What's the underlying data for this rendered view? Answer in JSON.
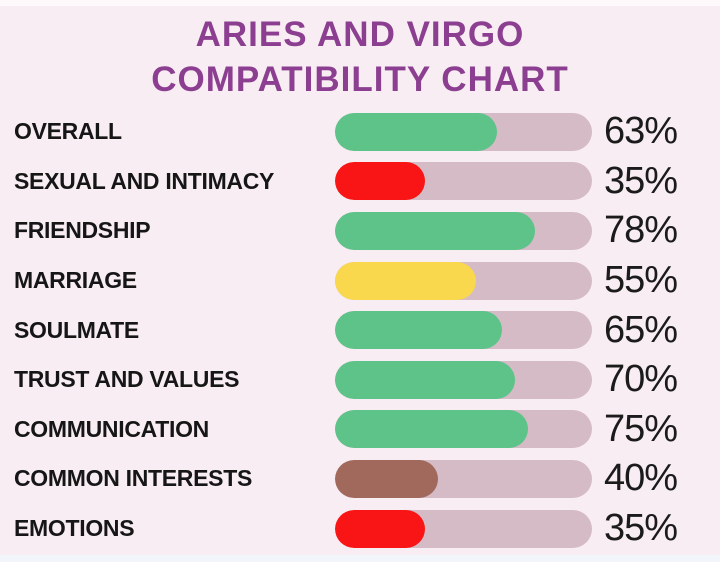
{
  "title": {
    "line1": "ARIES AND VIRGO",
    "line2": "COMPATIBILITY CHART"
  },
  "colors": {
    "background": "#f8edf2",
    "title": "#8c3f91",
    "label": "#161616",
    "percent": "#1b1b1b",
    "track": "#d5bbc6",
    "green": "#5dc389",
    "red": "#f91515",
    "yellow": "#f9d84e",
    "brown": "#a0695c"
  },
  "chart_data": {
    "type": "bar",
    "orientation": "horizontal",
    "title": "ARIES AND VIRGO COMPATIBILITY CHART",
    "categories": [
      "OVERALL",
      "SEXUAL AND INTIMACY",
      "FRIENDSHIP",
      "MARRIAGE",
      "SOULMATE",
      "TRUST AND VALUES",
      "COMMUNICATION",
      "COMMON INTERESTS",
      "EMOTIONS"
    ],
    "values": [
      63,
      35,
      78,
      55,
      65,
      70,
      75,
      40,
      35
    ],
    "value_labels": [
      "63%",
      "35%",
      "78%",
      "55%",
      "65%",
      "70%",
      "75%",
      "40%",
      "35%"
    ],
    "bar_colors": [
      "#5dc389",
      "#f91515",
      "#5dc389",
      "#f9d84e",
      "#5dc389",
      "#5dc389",
      "#5dc389",
      "#a0695c",
      "#f91515"
    ],
    "track_color": "#d5bbc6",
    "xlim": [
      0,
      100
    ],
    "grid": false,
    "legend": "none",
    "value_label_position": "right"
  }
}
